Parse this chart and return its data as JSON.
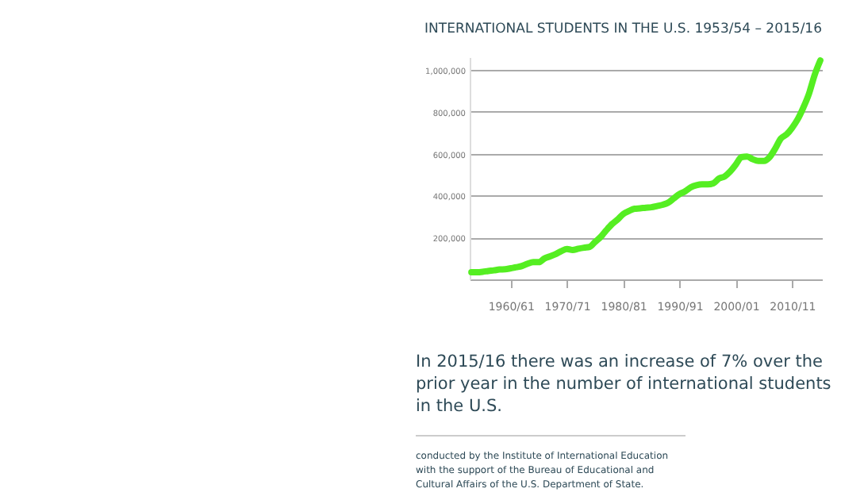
{
  "chart_data": {
    "type": "line",
    "title": "INTERNATIONAL STUDENTS IN THE U.S. 1953/54 – 2015/16",
    "annotations": [
      "In 2015/16 there was an increase of 7% over the prior year in the number of international students in the U.S.",
      "conducted by the Institute of International Education with the support of the Bureau of Educational and Cultural Affairs of the U.S. Department of State."
    ],
    "categories": [
      null,
      null,
      null,
      null,
      null,
      null,
      null,
      "1960/61",
      null,
      null,
      null,
      null,
      null,
      null,
      null,
      null,
      null,
      "1970/71",
      null,
      null,
      null,
      null,
      null,
      null,
      null,
      null,
      null,
      "1980/81",
      null,
      null,
      null,
      null,
      null,
      null,
      null,
      null,
      null,
      "1990/91",
      null,
      null,
      null,
      null,
      null,
      null,
      null,
      null,
      null,
      "2000/01",
      null,
      null,
      null,
      null,
      null,
      null,
      null,
      null,
      null,
      "2010/11",
      null,
      null,
      null,
      null,
      null
    ],
    "series": [
      {
        "color": "#55ee22",
        "values": [
          34000,
          34000,
          36000,
          40000,
          43000,
          47000,
          48000,
          53000,
          58000,
          64000,
          75000,
          82000,
          82000,
          100000,
          110000,
          121000,
          135000,
          145000,
          140000,
          146000,
          151000,
          155000,
          179000,
          203000,
          235000,
          264000,
          286000,
          312000,
          326000,
          337000,
          339000,
          342000,
          344000,
          350000,
          356000,
          366000,
          387000,
          407000,
          420000,
          439000,
          449000,
          453000,
          453000,
          458000,
          481000,
          491000,
          515000,
          548000,
          583000,
          586000,
          573000,
          565000,
          565000,
          583000,
          624000,
          672000,
          691000,
          723000,
          764000,
          820000,
          886000,
          975000,
          1044000
        ]
      }
    ],
    "ylim": [
      0,
      1060000
    ],
    "yticks": [
      {
        "value": 200000,
        "label": "200,000"
      },
      {
        "value": 400000,
        "label": "400,000"
      },
      {
        "value": 600000,
        "label": "600,000"
      },
      {
        "value": 800000,
        "label": "800,000"
      },
      {
        "value": 1000000,
        "label": "1,000,000"
      }
    ],
    "grid": "y",
    "marker": "none",
    "line_style": "solid"
  }
}
